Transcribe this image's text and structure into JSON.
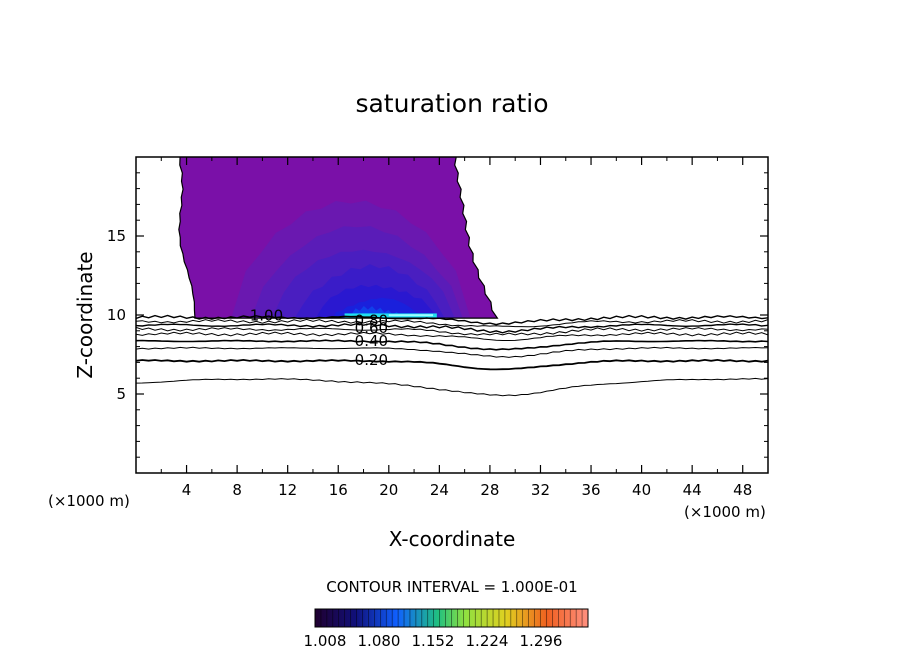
{
  "chart_data": {
    "type": "heatmap",
    "title": "saturation ratio",
    "xlabel": "X-coordinate",
    "ylabel": "Z-coordinate",
    "x_unit": "(×1000 m)",
    "z_unit": "(×1000 m)",
    "xlim": [
      0,
      50
    ],
    "ylim": [
      0,
      20
    ],
    "x_ticks": [
      4,
      8,
      12,
      16,
      20,
      24,
      28,
      32,
      36,
      40,
      44,
      48
    ],
    "y_ticks": [
      5,
      10,
      15
    ],
    "contour_interval_text": "CONTOUR INTERVAL = 1.000E-01",
    "colorbar": {
      "tick_labels": [
        "1.008",
        "1.080",
        "1.152",
        "1.224",
        "1.296"
      ],
      "colors": [
        "#200030",
        "#10107a",
        "#1060ff",
        "#20c080",
        "#90e040",
        "#e0d020",
        "#f06020",
        "#ff9080"
      ]
    },
    "supersaturated_region": {
      "x_range": [
        3.5,
        28.5
      ],
      "z_range": [
        9.8,
        20
      ],
      "max_value_near": {
        "x": 19,
        "z": 10
      }
    },
    "contour_labels": [
      {
        "text": "1.00",
        "x": 9,
        "z": 9.9
      },
      {
        "text": "0.80",
        "x": 17.3,
        "z": 9.6
      },
      {
        "text": "0.60",
        "x": 17.3,
        "z": 9.1
      },
      {
        "text": "0.40",
        "x": 17.3,
        "z": 8.3
      },
      {
        "text": "0.20",
        "x": 17.3,
        "z": 7.1
      }
    ]
  }
}
